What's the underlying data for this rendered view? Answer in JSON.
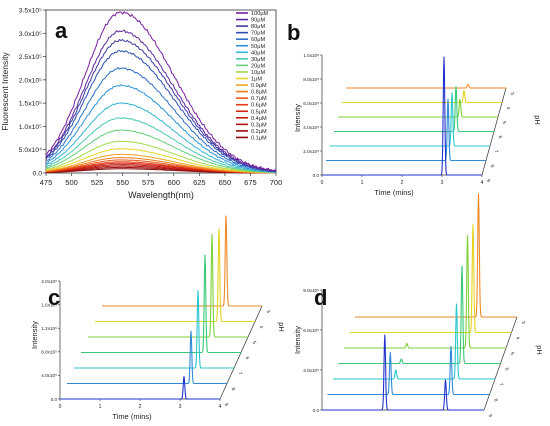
{
  "figure": {
    "panels": {
      "a": {
        "letter": "a"
      },
      "b": {
        "letter": "b"
      },
      "c": {
        "letter": "c"
      },
      "d": {
        "letter": "d"
      }
    }
  },
  "chart_data": [
    {
      "panel": "a",
      "type": "line",
      "xlabel": "Wavelength(nm)",
      "ylabel": "Fluorescent Intensity",
      "xlim": [
        475,
        700
      ],
      "ylim": [
        0,
        350000
      ],
      "x_ticks": [
        "475",
        "500",
        "525",
        "550",
        "575",
        "600",
        "625",
        "650",
        "675",
        "700"
      ],
      "y_ticks": [
        "0.0",
        "5.0x10⁴",
        "1.0x10⁵",
        "1.5x10⁵",
        "2.0x10⁵",
        "2.5x10⁵",
        "3.0x10⁵",
        "3.5x10⁵"
      ],
      "legend_position": "top-right",
      "peak_wavelength_nm": 548,
      "series": [
        {
          "name": "100μM",
          "color": "#7a1fa2",
          "peak": 345000
        },
        {
          "name": "90μM",
          "color": "#5b2a9e",
          "peak": 305000
        },
        {
          "name": "80μM",
          "color": "#3f3aa0",
          "peak": 285000
        },
        {
          "name": "70μM",
          "color": "#2c4fb0",
          "peak": 262000
        },
        {
          "name": "60μM",
          "color": "#2f6fc8",
          "peak": 225000
        },
        {
          "name": "50μM",
          "color": "#2d93d8",
          "peak": 188000
        },
        {
          "name": "40μM",
          "color": "#35b5d6",
          "peak": 150000
        },
        {
          "name": "30μM",
          "color": "#49c9b3",
          "peak": 118000
        },
        {
          "name": "20μM",
          "color": "#63cf7c",
          "peak": 92000
        },
        {
          "name": "10μM",
          "color": "#a6d94a",
          "peak": 68000
        },
        {
          "name": "1μM",
          "color": "#e6d62a",
          "peak": 52000
        },
        {
          "name": "0.9μM",
          "color": "#f0a520",
          "peak": 40000
        },
        {
          "name": "0.8μM",
          "color": "#ee7a1c",
          "peak": 33000
        },
        {
          "name": "0.7μM",
          "color": "#e85a18",
          "peak": 28000
        },
        {
          "name": "0.6μM",
          "color": "#e03a16",
          "peak": 24000
        },
        {
          "name": "0.5μM",
          "color": "#d42414",
          "peak": 21000
        },
        {
          "name": "0.4μM",
          "color": "#c41a12",
          "peak": 18000
        },
        {
          "name": "0.3μM",
          "color": "#b01410",
          "peak": 15000
        },
        {
          "name": "0.2μM",
          "color": "#9c0f0c",
          "peak": 12000
        },
        {
          "name": "0.1μM",
          "color": "#880b0a",
          "peak": 9000
        }
      ]
    },
    {
      "panel": "b",
      "type": "line",
      "xlabel": "Time (mins)",
      "ylabel": "Intensity",
      "zlabel": "pH",
      "xlim": [
        0,
        4
      ],
      "x_ticks": [
        "0",
        "1",
        "2",
        "3",
        "4"
      ],
      "y_ticks": [
        "0.0",
        "2.0x10⁵",
        "4.0x10⁵",
        "6.0x10⁵",
        "8.0x10⁵",
        "1.0x10⁶"
      ],
      "depth_ticks": [
        "9",
        "8",
        "7",
        "6",
        "5",
        "4",
        "3"
      ],
      "series": [
        {
          "name": "9",
          "color": "#2233cc",
          "peaks": [
            {
              "t": 3.05,
              "h": 1.0
            }
          ]
        },
        {
          "name": "8",
          "color": "#2f8ad8",
          "peaks": [
            {
              "t": 3.05,
              "h": 0.52
            }
          ]
        },
        {
          "name": "7",
          "color": "#2bc6cf",
          "peaks": [
            {
              "t": 3.05,
              "h": 0.45
            }
          ]
        },
        {
          "name": "6",
          "color": "#38c878",
          "peaks": [
            {
              "t": 3.05,
              "h": 0.38
            }
          ]
        },
        {
          "name": "5",
          "color": "#7fd13b",
          "peaks": [
            {
              "t": 3.05,
              "h": 0.15
            }
          ]
        },
        {
          "name": "4",
          "color": "#e5d420",
          "peaks": [
            {
              "t": 3.05,
              "h": 0.1
            }
          ]
        },
        {
          "name": "3",
          "color": "#ee8a2a",
          "peaks": [
            {
              "t": 3.05,
              "h": 0.03
            }
          ]
        }
      ]
    },
    {
      "panel": "c",
      "type": "line",
      "xlabel": "Time (mins)",
      "ylabel": "Intensity",
      "zlabel": "pH",
      "xlim": [
        0,
        4
      ],
      "x_ticks": [
        "0",
        "1",
        "2",
        "3",
        "4"
      ],
      "y_ticks": [
        "0.0",
        "4.0x10⁵",
        "8.0x10⁵",
        "1.2x10⁶",
        "1.6x10⁶",
        "2.0x10⁶"
      ],
      "depth_ticks": [
        "9",
        "8",
        "7",
        "6",
        "5",
        "4",
        "3"
      ],
      "series": [
        {
          "name": "9",
          "color": "#2233cc",
          "peaks": [
            {
              "t": 3.1,
              "h": 0.18
            }
          ]
        },
        {
          "name": "8",
          "color": "#2f8ad8",
          "peaks": [
            {
              "t": 3.1,
              "h": 0.42
            }
          ]
        },
        {
          "name": "7",
          "color": "#2bc6cf",
          "peaks": [
            {
              "t": 3.1,
              "h": 0.62
            }
          ]
        },
        {
          "name": "6",
          "color": "#38c878",
          "peaks": [
            {
              "t": 3.1,
              "h": 0.78
            }
          ]
        },
        {
          "name": "5",
          "color": "#7fd13b",
          "peaks": [
            {
              "t": 3.1,
              "h": 0.82
            }
          ]
        },
        {
          "name": "4",
          "color": "#e5d420",
          "peaks": [
            {
              "t": 3.1,
              "h": 0.74
            }
          ]
        },
        {
          "name": "3",
          "color": "#ee8a2a",
          "peaks": [
            {
              "t": 3.1,
              "h": 0.72
            }
          ]
        }
      ]
    },
    {
      "panel": "d",
      "type": "line",
      "xlabel": "",
      "ylabel": "Intensity",
      "zlabel": "pH",
      "xlim": [
        0,
        4
      ],
      "x_ticks": [],
      "y_ticks": [
        "0.0",
        "3.0x10⁵",
        "6.0x10⁵",
        "9.0x10⁵"
      ],
      "depth_ticks": [
        "9",
        "8",
        "7",
        "6",
        "5",
        "4",
        "3"
      ],
      "series": [
        {
          "name": "9",
          "color": "#2233cc",
          "peaks": [
            {
              "t": 1.55,
              "h": 0.5
            },
            {
              "t": 3.05,
              "h": 0.2
            }
          ]
        },
        {
          "name": "8",
          "color": "#2f8ad8",
          "peaks": [
            {
              "t": 1.55,
              "h": 0.28
            },
            {
              "t": 3.05,
              "h": 0.32
            }
          ]
        },
        {
          "name": "7",
          "color": "#2bc6cf",
          "peaks": [
            {
              "t": 1.55,
              "h": 0.06
            },
            {
              "t": 3.05,
              "h": 0.5
            }
          ]
        },
        {
          "name": "6",
          "color": "#38c878",
          "peaks": [
            {
              "t": 1.55,
              "h": 0.03
            },
            {
              "t": 3.05,
              "h": 0.65
            }
          ]
        },
        {
          "name": "5",
          "color": "#7fd13b",
          "peaks": [
            {
              "t": 1.55,
              "h": 0.03
            },
            {
              "t": 3.05,
              "h": 0.75
            }
          ]
        },
        {
          "name": "4",
          "color": "#e5d420",
          "peaks": [
            {
              "t": 3.05,
              "h": 0.72
            }
          ]
        },
        {
          "name": "3",
          "color": "#ee8a2a",
          "peaks": [
            {
              "t": 3.05,
              "h": 0.82
            }
          ]
        }
      ]
    }
  ]
}
